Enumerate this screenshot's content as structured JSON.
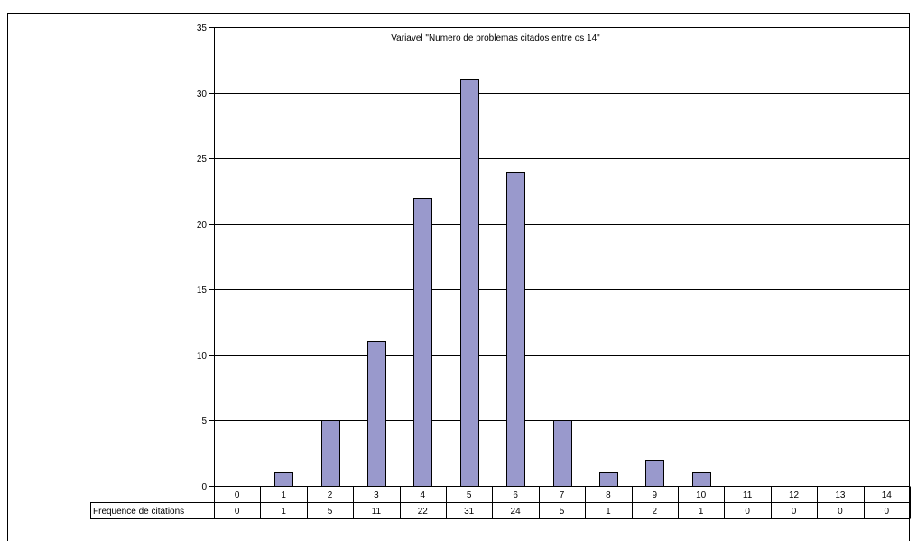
{
  "chart_data": {
    "type": "bar",
    "title": "Variavel \"Numero de problemas citados entre os 14\"",
    "categories": [
      "0",
      "1",
      "2",
      "3",
      "4",
      "5",
      "6",
      "7",
      "8",
      "9",
      "10",
      "11",
      "12",
      "13",
      "14"
    ],
    "series": [
      {
        "name": "Frequence de citations",
        "values": [
          0,
          1,
          5,
          11,
          22,
          31,
          24,
          5,
          1,
          2,
          1,
          0,
          0,
          0,
          0
        ]
      }
    ],
    "ylim": [
      0,
      35
    ],
    "yticks": [
      0,
      5,
      10,
      15,
      20,
      25,
      30,
      35
    ],
    "grid": true,
    "data_table": true,
    "bar_color": "#9999cc",
    "bar_stroke": "#000000"
  }
}
